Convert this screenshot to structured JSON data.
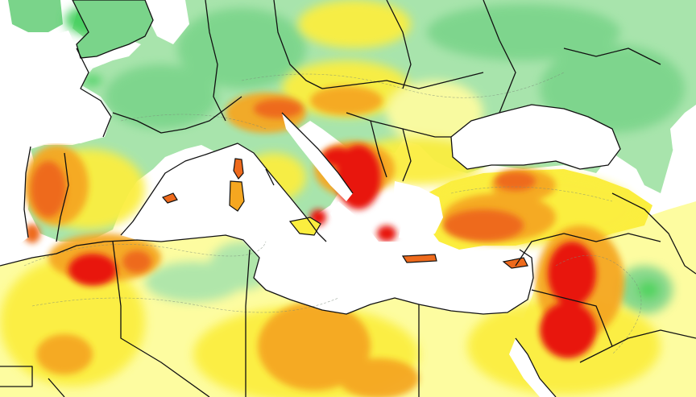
{
  "map": {
    "colors": {
      "sea": "#ffffff",
      "light_green": "#a8e4ac",
      "green": "#7ad48a",
      "dark_green": "#3fcf5a",
      "pale_yellow": "#fdfca0",
      "yellow": "#fbee3f",
      "orange": "#f5a720",
      "dark_orange": "#ee6a1c",
      "red": "#e8160f"
    }
  }
}
